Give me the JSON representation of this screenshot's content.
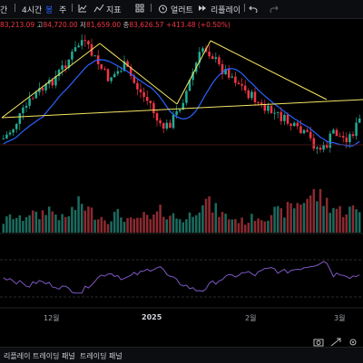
{
  "toolbar": {
    "symbol_fragment": "간",
    "interval": "4시간",
    "chart_style_glyph": "봉",
    "period": "주",
    "indicators_label": "지표",
    "alert_label": "얼러트",
    "replay_label": "리플레이"
  },
  "ohlc": {
    "open": "83,213.09",
    "high": "84,720.00",
    "low": "81,659.00",
    "close": "83,626.57",
    "change": "+413.48 (+0.50%)"
  },
  "bottom_panel": {
    "tab1": "리플레이 트레이딩 패널",
    "tab2": "트레이딩 패널"
  },
  "colors": {
    "up": "#22ab94",
    "down": "#f23645",
    "pattern_line": "#f5e663",
    "ma_line": "#2962ff",
    "rsi_line": "#7e57c2",
    "background": "#000000"
  },
  "chart_data": {
    "type": "candlestick",
    "instrument_interval": "4시간",
    "x_ticks": [
      "12월",
      "2025",
      "2월",
      "3월"
    ],
    "bold_x_tick": "2025",
    "annotations": [
      "head-and-shoulders neckline",
      "head-and-shoulders tops"
    ],
    "price_series_note": "candles, volume bars and an oscillator pane are shown; prices along a left-to-right sequence roughly from Nov 2024 to Mar 2025",
    "close_path": [
      0.78,
      0.71,
      0.6,
      0.5,
      0.42,
      0.39,
      0.31,
      0.22,
      0.13,
      0.03,
      0.12,
      0.22,
      0.32,
      0.28,
      0.22,
      0.35,
      0.45,
      0.52,
      0.7,
      0.68,
      0.58,
      0.43,
      0.24,
      0.08,
      0.14,
      0.25,
      0.28,
      0.35,
      0.43,
      0.48,
      0.56,
      0.58,
      0.62,
      0.67,
      0.73,
      0.76,
      0.85,
      0.86,
      0.72,
      0.78,
      0.76,
      0.64
    ],
    "volume_levels": [
      0.25,
      0.4,
      0.3,
      0.5,
      0.35,
      0.6,
      0.45,
      0.3,
      0.55,
      0.7,
      0.5,
      0.4,
      0.3,
      0.45,
      0.35,
      0.25,
      0.4,
      0.3,
      0.5,
      0.45,
      0.35,
      0.3,
      0.55,
      0.8,
      0.6,
      0.45,
      0.35,
      0.3,
      0.25,
      0.4,
      0.35,
      0.5,
      0.45,
      0.6,
      0.7,
      0.85,
      0.9,
      0.75,
      0.6,
      0.5,
      0.55,
      0.5
    ],
    "oscillator_levels": [
      0.5,
      0.45,
      0.35,
      0.3,
      0.4,
      0.35,
      0.3,
      0.25,
      0.2,
      0.15,
      0.35,
      0.5,
      0.6,
      0.55,
      0.45,
      0.55,
      0.6,
      0.7,
      0.75,
      0.5,
      0.4,
      0.3,
      0.2,
      0.2,
      0.35,
      0.45,
      0.5,
      0.55,
      0.6,
      0.55,
      0.65,
      0.7,
      0.6,
      0.65,
      0.7,
      0.75,
      0.8,
      0.9,
      0.55,
      0.6,
      0.5,
      0.55
    ]
  }
}
